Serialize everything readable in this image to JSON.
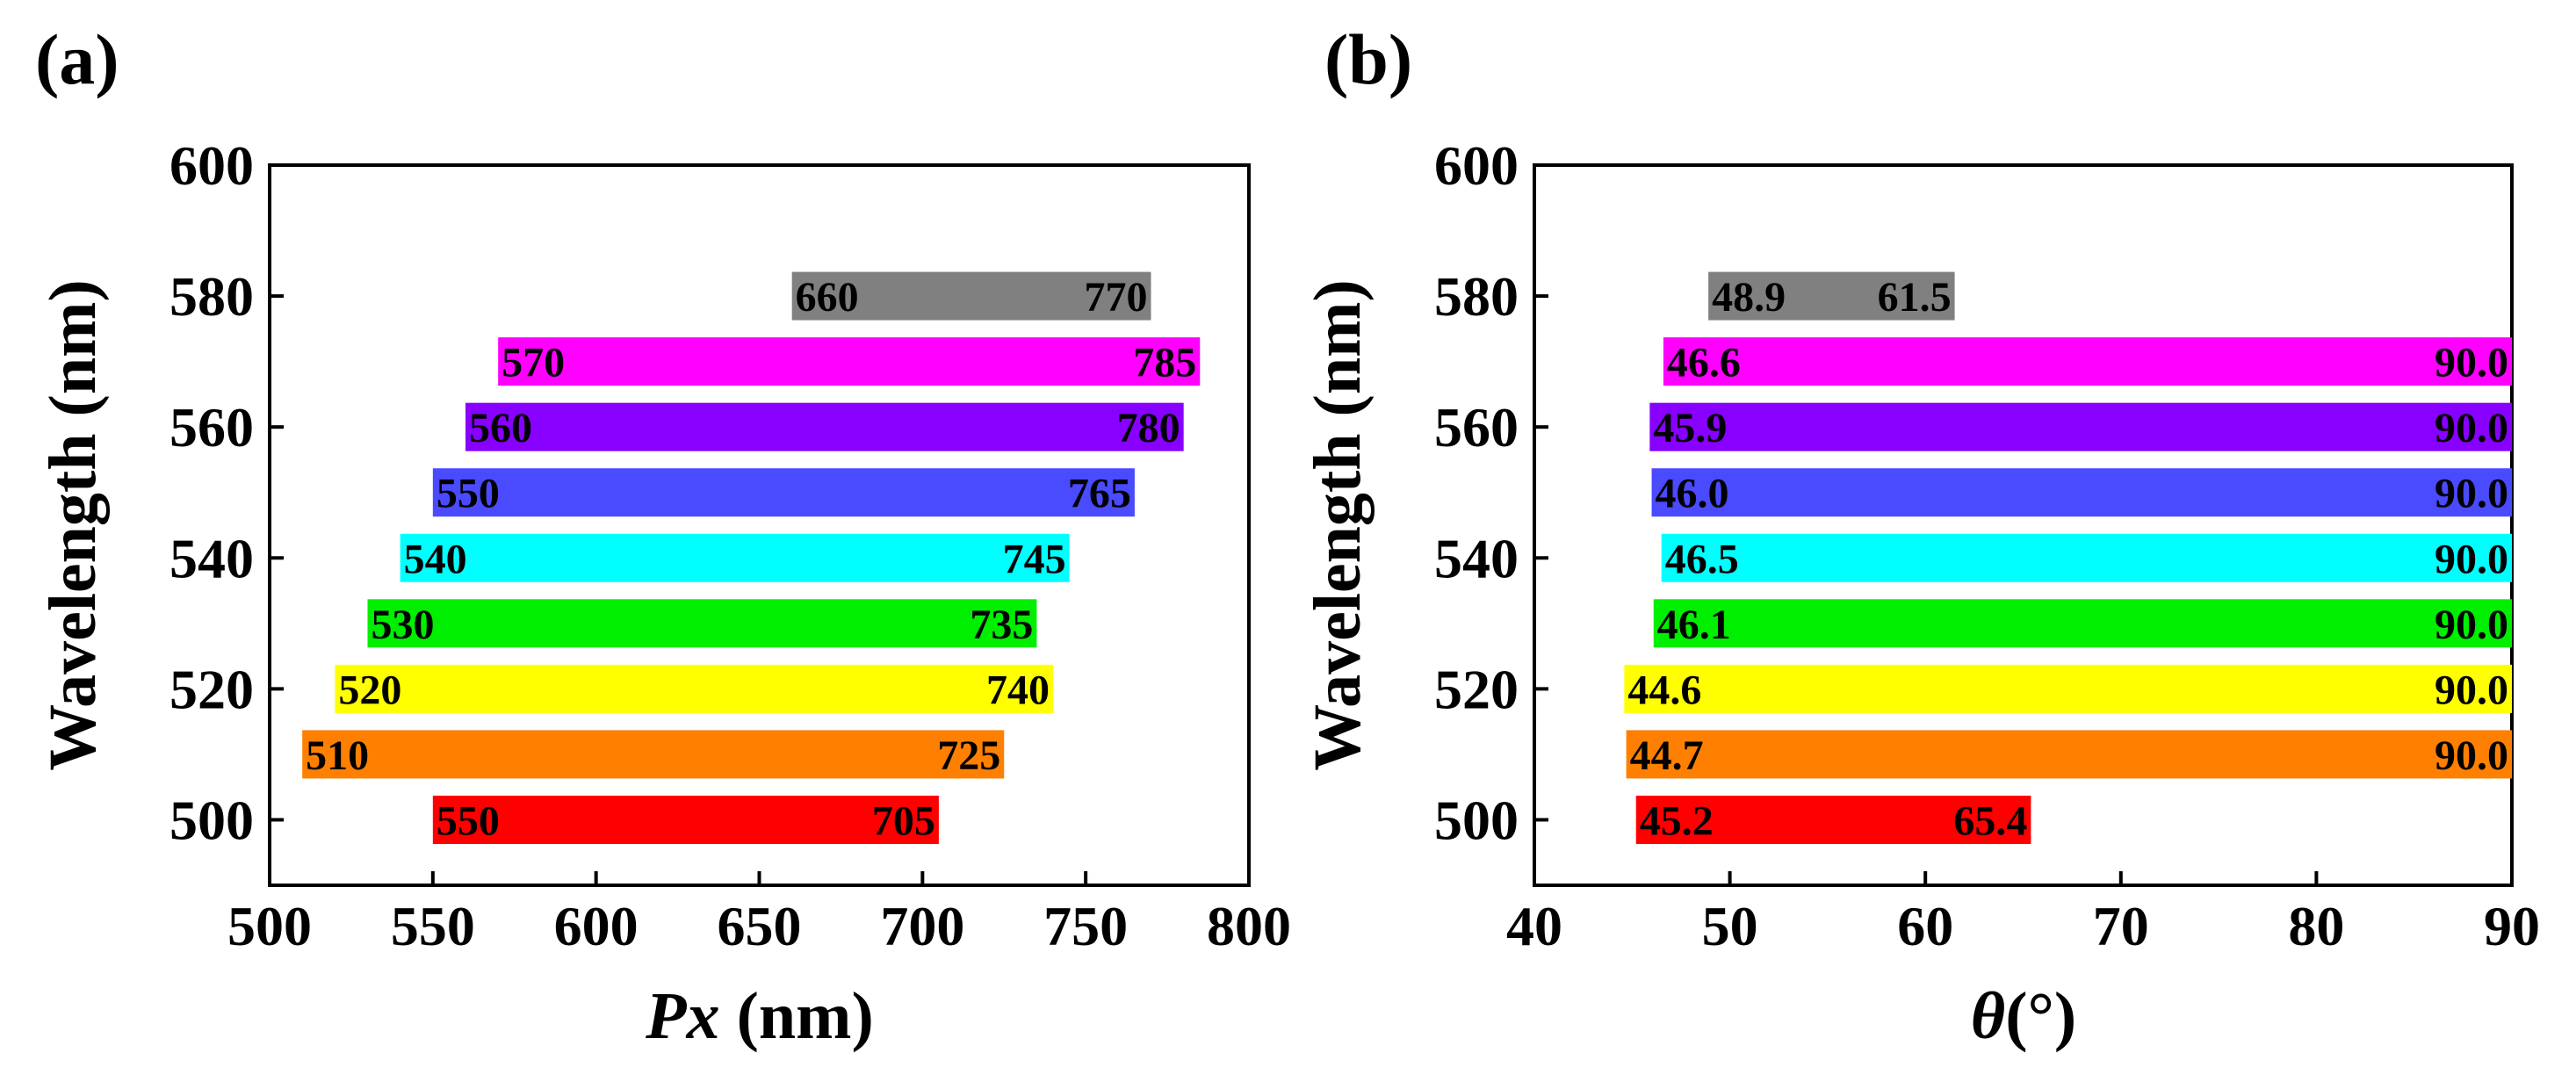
{
  "figure": {
    "panels": [
      "(a)",
      "(b)"
    ]
  },
  "chart_data": [
    {
      "type": "bar",
      "orientation": "horizontal-range",
      "panel_label": "(a)",
      "title": "",
      "xlabel_main": "Px",
      "xlabel_unit": "(nm)",
      "ylabel": "Wavelength (nm)",
      "xlim": [
        500,
        800
      ],
      "ylim": [
        490,
        600
      ],
      "xticks": [
        "500",
        "550",
        "600",
        "650",
        "700",
        "750",
        "800"
      ],
      "yticks": [
        "500",
        "520",
        "540",
        "560",
        "580",
        "600"
      ],
      "grid": false,
      "series": [
        {
          "wavelength": 500,
          "start": 550,
          "end": 705,
          "start_label": "550",
          "end_label": "705",
          "color": "#ff0000"
        },
        {
          "wavelength": 510,
          "start": 510,
          "end": 725,
          "start_label": "510",
          "end_label": "725",
          "color": "#ff8000"
        },
        {
          "wavelength": 520,
          "start": 520,
          "end": 740,
          "start_label": "520",
          "end_label": "740",
          "color": "#ffff00"
        },
        {
          "wavelength": 530,
          "start": 530,
          "end": 735,
          "start_label": "530",
          "end_label": "735",
          "color": "#00ee00"
        },
        {
          "wavelength": 540,
          "start": 540,
          "end": 745,
          "start_label": "540",
          "end_label": "745",
          "color": "#00ffff"
        },
        {
          "wavelength": 550,
          "start": 550,
          "end": 765,
          "start_label": "550",
          "end_label": "765",
          "color": "#4a4aff"
        },
        {
          "wavelength": 560,
          "start": 560,
          "end": 780,
          "start_label": "560",
          "end_label": "780",
          "color": "#8800ff"
        },
        {
          "wavelength": 570,
          "start": 570,
          "end": 785,
          "start_label": "570",
          "end_label": "785",
          "color": "#ff00ff"
        },
        {
          "wavelength": 580,
          "start": 660,
          "end": 770,
          "start_label": "660",
          "end_label": "770",
          "color": "#808080"
        }
      ]
    },
    {
      "type": "bar",
      "orientation": "horizontal-range",
      "panel_label": "(b)",
      "title": "",
      "xlabel_main": "θ",
      "xlabel_unit": "(°)",
      "ylabel": "Wavelength (nm)",
      "xlim": [
        40,
        90
      ],
      "ylim": [
        490,
        600
      ],
      "xticks": [
        "40",
        "50",
        "60",
        "70",
        "80",
        "90"
      ],
      "yticks": [
        "500",
        "520",
        "540",
        "560",
        "580",
        "600"
      ],
      "grid": false,
      "series": [
        {
          "wavelength": 500,
          "start": 45.2,
          "end": 65.4,
          "start_label": "45.2",
          "end_label": "65.4",
          "color": "#ff0000"
        },
        {
          "wavelength": 510,
          "start": 44.7,
          "end": 90.0,
          "start_label": "44.7",
          "end_label": "90.0",
          "color": "#ff8000"
        },
        {
          "wavelength": 520,
          "start": 44.6,
          "end": 90.0,
          "start_label": "44.6",
          "end_label": "90.0",
          "color": "#ffff00"
        },
        {
          "wavelength": 530,
          "start": 46.1,
          "end": 90.0,
          "start_label": "46.1",
          "end_label": "90.0",
          "color": "#00ee00"
        },
        {
          "wavelength": 540,
          "start": 46.5,
          "end": 90.0,
          "start_label": "46.5",
          "end_label": "90.0",
          "color": "#00ffff"
        },
        {
          "wavelength": 550,
          "start": 46.0,
          "end": 90.0,
          "start_label": "46.0",
          "end_label": "90.0",
          "color": "#4a4aff"
        },
        {
          "wavelength": 560,
          "start": 45.9,
          "end": 90.0,
          "start_label": "45.9",
          "end_label": "90.0",
          "color": "#8800ff"
        },
        {
          "wavelength": 570,
          "start": 46.6,
          "end": 90.0,
          "start_label": "46.6",
          "end_label": "90.0",
          "color": "#ff00ff"
        },
        {
          "wavelength": 580,
          "start": 48.9,
          "end": 61.5,
          "start_label": "48.9",
          "end_label": "61.5",
          "color": "#808080"
        }
      ]
    }
  ]
}
